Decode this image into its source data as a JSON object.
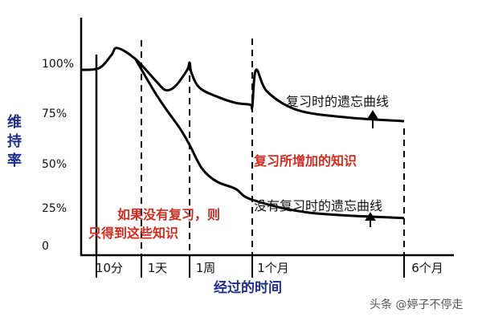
{
  "chart_data": {
    "type": "line",
    "title": "",
    "ylabel": "维持率",
    "xlabel": "经过的时间",
    "y_ticks": [
      "100%",
      "75%",
      "50%",
      "25%",
      "0"
    ],
    "ylim": [
      0,
      100
    ],
    "x_ticks": [
      "10分",
      "1天",
      "1周",
      "1个月",
      "6个月"
    ],
    "series": [
      {
        "name": "复习时的遗忘曲线",
        "x": [
          0,
          0.3,
          0.5,
          0.6,
          0.9,
          1.6,
          2.0,
          2.4,
          2.9,
          3.0,
          3.1,
          3.5,
          4.4,
          5.2,
          5.9,
          6.0,
          6.1,
          6.4,
          7.2,
          8.5,
          10
        ],
        "y": [
          96,
          97,
          104,
          108,
          102,
          90,
          85,
          87,
          96,
          100,
          94,
          86,
          81,
          78,
          77,
          76,
          96,
          84,
          74,
          70,
          68
        ]
      },
      {
        "name": "没有复习时的遗忘曲线",
        "x": [
          0.9,
          1.5,
          2.0,
          2.6,
          3.0,
          3.6,
          4.3,
          5.2,
          6.0,
          7.5,
          10
        ],
        "y": [
          102,
          85,
          75,
          64,
          55,
          42,
          35,
          31,
          25,
          18,
          15
        ]
      }
    ],
    "annotations": {
      "reviewed_curve": "复习时的遗忘曲线",
      "added_knowledge": "复习所增加的知识",
      "no_review_curve": "没有复习时的遗忘曲线",
      "no_review_note_line1": "如果没有复习，则",
      "no_review_note_line2": "只得到这些知识"
    },
    "colors": {
      "curve": "#000000",
      "axis_title": "#1f2f8f",
      "highlight": "#d42a1f"
    }
  },
  "watermark": "头条 @婷子不停走"
}
